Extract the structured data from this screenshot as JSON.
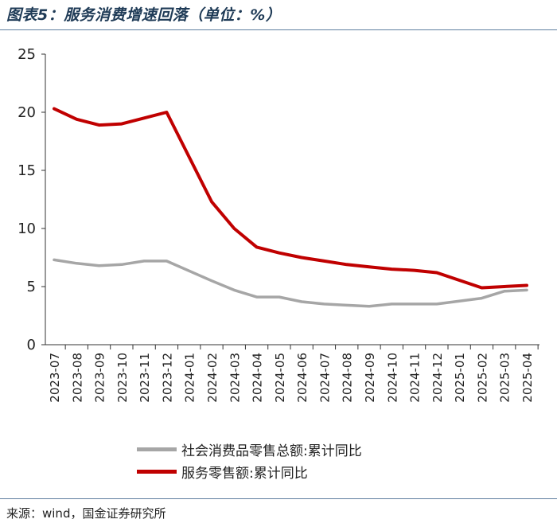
{
  "title": "图表5：服务消费增速回落（单位：%）",
  "source": "来源：wind，国金证券研究所",
  "colors": {
    "series_1": "#a6a6a6",
    "series_2": "#c00000",
    "axis": "#333333"
  },
  "chart_data": {
    "type": "line",
    "categories": [
      "2023-07",
      "2023-08",
      "2023-09",
      "2023-10",
      "2023-11",
      "2023-12",
      "2024-01",
      "2024-02",
      "2024-03",
      "2024-04",
      "2024-05",
      "2024-06",
      "2024-07",
      "2024-08",
      "2024-09",
      "2024-10",
      "2024-11",
      "2024-12",
      "2025-01",
      "2025-02",
      "2025-03",
      "2025-04"
    ],
    "series": [
      {
        "name": "社会消费品零售总额:累计同比",
        "color": "#a6a6a6",
        "values": [
          7.3,
          7.0,
          6.8,
          6.9,
          7.2,
          7.2,
          null,
          5.5,
          4.7,
          4.1,
          4.1,
          3.7,
          3.5,
          3.4,
          3.3,
          3.5,
          3.5,
          3.5,
          null,
          4.0,
          4.6,
          4.7
        ]
      },
      {
        "name": "服务零售额:累计同比",
        "color": "#c00000",
        "values": [
          20.3,
          19.4,
          18.9,
          19.0,
          19.5,
          20.0,
          null,
          12.3,
          10.0,
          8.4,
          7.9,
          7.5,
          7.2,
          6.9,
          6.7,
          6.5,
          6.4,
          6.2,
          null,
          4.9,
          5.0,
          5.1
        ]
      }
    ],
    "ylim": [
      0,
      25
    ],
    "yticks": [
      "0",
      "5",
      "10",
      "15",
      "20",
      "25"
    ],
    "xlabel": "",
    "ylabel": "",
    "grid": false,
    "legend_position": "bottom"
  }
}
